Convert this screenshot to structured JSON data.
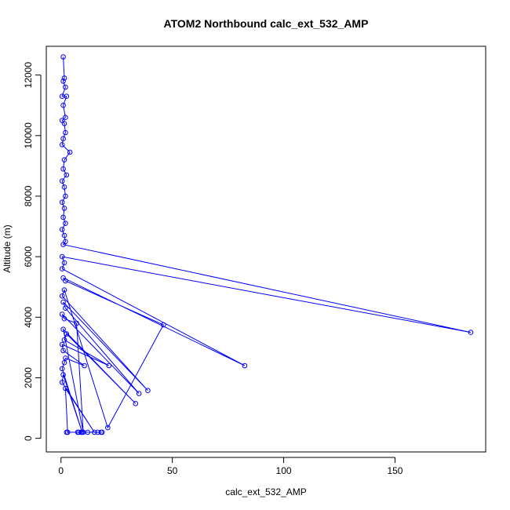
{
  "chart_data": {
    "type": "line",
    "title": "ATOM2 Northbound calc_ext_532_AMP",
    "xlabel": "calc_ext_532_AMP",
    "ylabel": "Altitude (m)",
    "xlim": [
      -6.6,
      190.7
    ],
    "ylim": [
      -450,
      12950
    ],
    "x_ticks": [
      0,
      50,
      100,
      150
    ],
    "y_ticks": [
      0,
      2000,
      4000,
      6000,
      8000,
      10000,
      12000
    ],
    "x_tick_labels": [
      "0",
      "50",
      "100",
      "150"
    ],
    "y_tick_labels": [
      "0",
      "2000",
      "4000",
      "6000",
      "8000",
      "10000",
      "12000"
    ],
    "grid": false,
    "legend": "none",
    "series_color": "#0000ff",
    "point_style": "open-circle",
    "series": [
      {
        "points": [
          [
            1.0,
            12600
          ],
          [
            1.5,
            11900
          ],
          [
            1.0,
            11800
          ],
          [
            2.0,
            11600
          ],
          [
            0.5,
            11300
          ],
          [
            2.5,
            11300
          ],
          [
            1.0,
            11000
          ],
          [
            2.0,
            10600
          ],
          [
            0.5,
            10500
          ],
          [
            1.5,
            10400
          ],
          [
            2.0,
            10100
          ],
          [
            1.0,
            9900
          ],
          [
            0.5,
            9700
          ],
          [
            4.0,
            9450
          ],
          [
            1.5,
            9200
          ],
          [
            1.0,
            8900
          ],
          [
            2.5,
            8700
          ],
          [
            0.5,
            8500
          ],
          [
            1.5,
            8300
          ],
          [
            2.0,
            8000
          ],
          [
            0.5,
            7800
          ],
          [
            1.5,
            7600
          ],
          [
            1.0,
            7300
          ],
          [
            2.0,
            7100
          ],
          [
            0.5,
            6900
          ],
          [
            1.5,
            6700
          ],
          [
            2.0,
            6500
          ],
          [
            1.0,
            6400
          ],
          [
            184.0,
            3500
          ],
          [
            0.5,
            6000
          ],
          [
            1.5,
            5800
          ],
          [
            0.5,
            5600
          ],
          [
            82.5,
            2400
          ],
          [
            1.0,
            5300
          ],
          [
            2.0,
            5200
          ],
          [
            46.0,
            3750
          ],
          [
            21.0,
            350
          ],
          [
            1.5,
            4900
          ],
          [
            0.5,
            4700
          ],
          [
            39.0,
            1580
          ],
          [
            1.0,
            4500
          ],
          [
            2.0,
            4300
          ],
          [
            35.0,
            1480
          ],
          [
            0.5,
            4100
          ],
          [
            1.5,
            3950
          ],
          [
            7.0,
            3800
          ],
          [
            10.0,
            200
          ],
          [
            1.0,
            3600
          ],
          [
            33.5,
            1150
          ],
          [
            2.5,
            3450
          ],
          [
            1.5,
            3250
          ],
          [
            21.5,
            2400
          ],
          [
            0.5,
            3100
          ],
          [
            1.0,
            2900
          ],
          [
            10.5,
            2400
          ],
          [
            2.0,
            2650
          ],
          [
            1.5,
            2500
          ],
          [
            0.5,
            2300
          ],
          [
            9.5,
            200
          ],
          [
            1.0,
            2100
          ],
          [
            0.5,
            1850
          ],
          [
            15.0,
            200
          ],
          [
            2.0,
            1650
          ],
          [
            3.0,
            200
          ],
          [
            18.5,
            200
          ],
          [
            2.5,
            200
          ],
          [
            8.0,
            200
          ],
          [
            12.0,
            200
          ],
          [
            16.5,
            200
          ],
          [
            7.5,
            200
          ],
          [
            9.0,
            200
          ],
          [
            18.0,
            200
          ]
        ]
      }
    ]
  }
}
